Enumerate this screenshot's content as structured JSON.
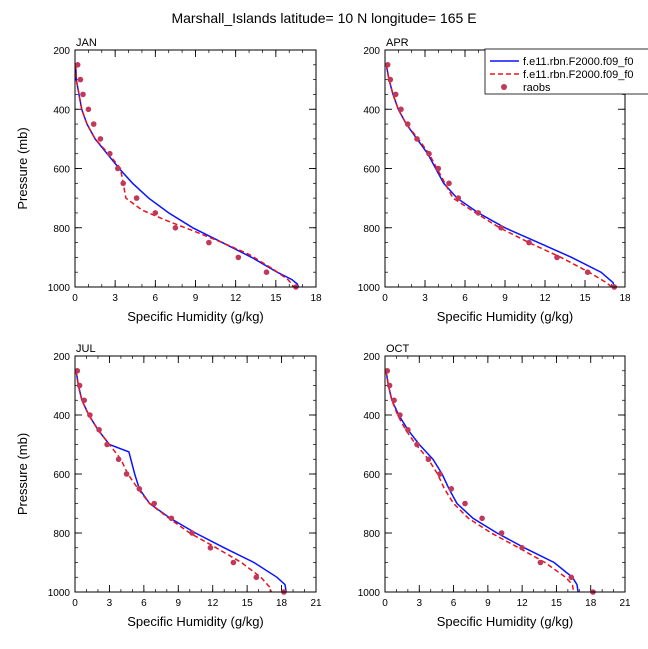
{
  "figure": {
    "title": "Marshall_Islands  latitude= 10 N longitude= 165 E"
  },
  "legend": {
    "entries": [
      {
        "label": "f.e11.rbn.F2000.f09_f0",
        "color": "#0a14ff",
        "style": "solid"
      },
      {
        "label": "f.e11.rbn.F2000.f09_f0",
        "color": "#e8131b",
        "style": "dashed"
      },
      {
        "label": "raobs",
        "color": "#c0395a",
        "style": "marker"
      }
    ]
  },
  "chart_data": [
    {
      "type": "line",
      "panel_label": "JAN",
      "xlabel": "Specific Humidity (g/kg)",
      "ylabel": "Pressure (mb)",
      "xlim": [
        0,
        18
      ],
      "ylim": [
        1000,
        200
      ],
      "y_inverted": true,
      "xticks": [
        "0",
        "3",
        "6",
        "9",
        "12",
        "15",
        "18"
      ],
      "yticks": [
        "200",
        "400",
        "600",
        "800",
        "1000"
      ],
      "series": [
        {
          "name": "f.e11.rbn.F2000.f09_f0",
          "kind": "line",
          "color": "#0a14ff",
          "dashed": false,
          "x": [
            0.05,
            0.1,
            0.3,
            0.5,
            0.9,
            1.5,
            2.4,
            3.3,
            4.3,
            5.5,
            7.0,
            8.8,
            11.0,
            13.2,
            15.1,
            16.2,
            16.6,
            16.7
          ],
          "y": [
            250,
            300,
            350,
            400,
            450,
            500,
            550,
            600,
            650,
            700,
            750,
            800,
            850,
            900,
            950,
            975,
            990,
            1000
          ]
        },
        {
          "name": "f.e11.rbn.F2000.f09_f0",
          "kind": "line",
          "color": "#e8131b",
          "dashed": false,
          "x": [
            0.05,
            0.1,
            0.3,
            0.5,
            0.9,
            1.5,
            2.5,
            3.4,
            3.8,
            5.0,
            6.8,
            8.8,
            11.0,
            13.0,
            14.8,
            15.9,
            16.2,
            16.3
          ],
          "y": [
            250,
            300,
            350,
            400,
            450,
            500,
            550,
            600,
            700,
            740,
            775,
            810,
            850,
            890,
            940,
            975,
            990,
            1000
          ]
        },
        {
          "name": "raobs",
          "kind": "points",
          "color": "#c0395a",
          "x": [
            0.2,
            0.4,
            0.6,
            1.0,
            1.4,
            1.9,
            2.6,
            3.2,
            3.6,
            4.6,
            6.0,
            7.5,
            10.0,
            12.2,
            14.3,
            16.5
          ],
          "y": [
            250,
            300,
            350,
            400,
            450,
            500,
            550,
            600,
            650,
            700,
            750,
            800,
            850,
            900,
            950,
            1000
          ]
        }
      ]
    },
    {
      "type": "line",
      "panel_label": "APR",
      "xlabel": "Specific Humidity (g/kg)",
      "ylabel": "",
      "xlim": [
        0,
        18
      ],
      "ylim": [
        1000,
        200
      ],
      "y_inverted": true,
      "xticks": [
        "0",
        "3",
        "6",
        "9",
        "12",
        "15",
        "18"
      ],
      "yticks": [
        "200",
        "400",
        "600",
        "800",
        "1000"
      ],
      "series": [
        {
          "name": "f.e11.rbn.F2000.f09_f0",
          "kind": "line",
          "color": "#0a14ff",
          "dashed": false,
          "x": [
            0.1,
            0.3,
            0.6,
            1.0,
            1.6,
            2.4,
            3.2,
            3.8,
            4.4,
            5.4,
            7.0,
            9.0,
            11.5,
            14.0,
            16.2,
            17.1,
            17.2
          ],
          "y": [
            250,
            300,
            350,
            400,
            450,
            500,
            550,
            600,
            650,
            700,
            750,
            800,
            850,
            900,
            950,
            985,
            1000
          ]
        },
        {
          "name": "f.e11.rbn.F2000.f09_f0",
          "kind": "line",
          "color": "#e8131b",
          "dashed": false,
          "x": [
            0.1,
            0.3,
            0.6,
            1.0,
            1.6,
            2.5,
            3.3,
            3.9,
            5.1,
            6.8,
            8.6,
            10.8,
            13.2,
            15.3,
            16.6,
            17.0
          ],
          "y": [
            250,
            300,
            350,
            400,
            450,
            500,
            550,
            600,
            700,
            750,
            800,
            850,
            900,
            950,
            985,
            1000
          ]
        },
        {
          "name": "raobs",
          "kind": "points",
          "color": "#c0395a",
          "x": [
            0.2,
            0.4,
            0.8,
            1.2,
            1.7,
            2.4,
            3.3,
            4.0,
            4.8,
            5.5,
            7.0,
            8.7,
            10.8,
            12.9,
            15.2,
            17.2
          ],
          "y": [
            250,
            300,
            350,
            400,
            450,
            500,
            550,
            600,
            650,
            700,
            750,
            800,
            850,
            900,
            950,
            1000
          ]
        }
      ]
    },
    {
      "type": "line",
      "panel_label": "JUL",
      "xlabel": "Specific Humidity (g/kg)",
      "ylabel": "Pressure (mb)",
      "xlim": [
        0,
        21
      ],
      "ylim": [
        1000,
        200
      ],
      "y_inverted": true,
      "xticks": [
        "0",
        "3",
        "6",
        "9",
        "12",
        "15",
        "18",
        "21"
      ],
      "yticks": [
        "200",
        "400",
        "600",
        "800",
        "1000"
      ],
      "series": [
        {
          "name": "f.e11.rbn.F2000.f09_f0",
          "kind": "line",
          "color": "#0a14ff",
          "dashed": false,
          "x": [
            0.1,
            0.3,
            0.6,
            1.2,
            2.0,
            3.0,
            4.7,
            5.2,
            5.6,
            6.5,
            8.3,
            10.5,
            13.0,
            15.6,
            17.6,
            18.3,
            18.4
          ],
          "y": [
            250,
            300,
            350,
            400,
            450,
            500,
            525,
            600,
            650,
            700,
            750,
            800,
            850,
            900,
            950,
            975,
            1000
          ]
        },
        {
          "name": "f.e11.rbn.F2000.f09_f0",
          "kind": "line",
          "color": "#e8131b",
          "dashed": false,
          "x": [
            0.1,
            0.3,
            0.6,
            1.2,
            2.0,
            3.0,
            4.0,
            4.6,
            5.5,
            6.5,
            8.2,
            10.0,
            12.3,
            14.5,
            16.2,
            17.0,
            17.1
          ],
          "y": [
            250,
            300,
            350,
            400,
            450,
            500,
            550,
            600,
            650,
            700,
            750,
            800,
            850,
            900,
            950,
            985,
            1000
          ]
        },
        {
          "name": "raobs",
          "kind": "points",
          "color": "#c0395a",
          "x": [
            0.2,
            0.4,
            0.8,
            1.3,
            2.1,
            2.8,
            3.8,
            4.5,
            5.6,
            6.9,
            8.4,
            10.2,
            11.8,
            13.8,
            15.8,
            18.2
          ],
          "y": [
            250,
            300,
            350,
            400,
            450,
            500,
            550,
            600,
            650,
            700,
            750,
            800,
            850,
            900,
            950,
            1000
          ]
        }
      ]
    },
    {
      "type": "line",
      "panel_label": "OCT",
      "xlabel": "Specific Humidity (g/kg)",
      "ylabel": "",
      "xlim": [
        0,
        21
      ],
      "ylim": [
        1000,
        200
      ],
      "y_inverted": true,
      "xticks": [
        "0",
        "3",
        "6",
        "9",
        "12",
        "15",
        "18",
        "21"
      ],
      "yticks": [
        "200",
        "400",
        "600",
        "800",
        "1000"
      ],
      "series": [
        {
          "name": "f.e11.rbn.F2000.f09_f0",
          "kind": "line",
          "color": "#0a14ff",
          "dashed": false,
          "x": [
            0.1,
            0.3,
            0.6,
            1.2,
            2.0,
            3.0,
            4.2,
            5.0,
            5.6,
            6.3,
            7.7,
            9.8,
            12.2,
            14.8,
            16.4,
            16.8,
            16.9
          ],
          "y": [
            250,
            300,
            350,
            400,
            450,
            500,
            550,
            600,
            650,
            700,
            750,
            800,
            850,
            900,
            950,
            975,
            1000
          ]
        },
        {
          "name": "f.e11.rbn.F2000.f09_f0",
          "kind": "line",
          "color": "#e8131b",
          "dashed": false,
          "x": [
            0.1,
            0.3,
            0.6,
            1.1,
            1.8,
            2.7,
            3.8,
            4.6,
            5.2,
            6.0,
            7.3,
            9.3,
            11.7,
            14.0,
            15.8,
            16.4,
            16.5
          ],
          "y": [
            250,
            300,
            350,
            400,
            450,
            500,
            550,
            600,
            650,
            700,
            750,
            800,
            850,
            900,
            950,
            975,
            1000
          ]
        },
        {
          "name": "raobs",
          "kind": "points",
          "color": "#c0395a",
          "x": [
            0.2,
            0.4,
            0.8,
            1.3,
            2.0,
            2.8,
            3.8,
            4.8,
            5.8,
            7.0,
            8.5,
            10.2,
            12.0,
            13.6,
            16.3,
            18.2
          ],
          "y": [
            250,
            300,
            350,
            400,
            450,
            500,
            550,
            600,
            650,
            700,
            750,
            800,
            850,
            900,
            950,
            1000
          ]
        }
      ]
    }
  ]
}
